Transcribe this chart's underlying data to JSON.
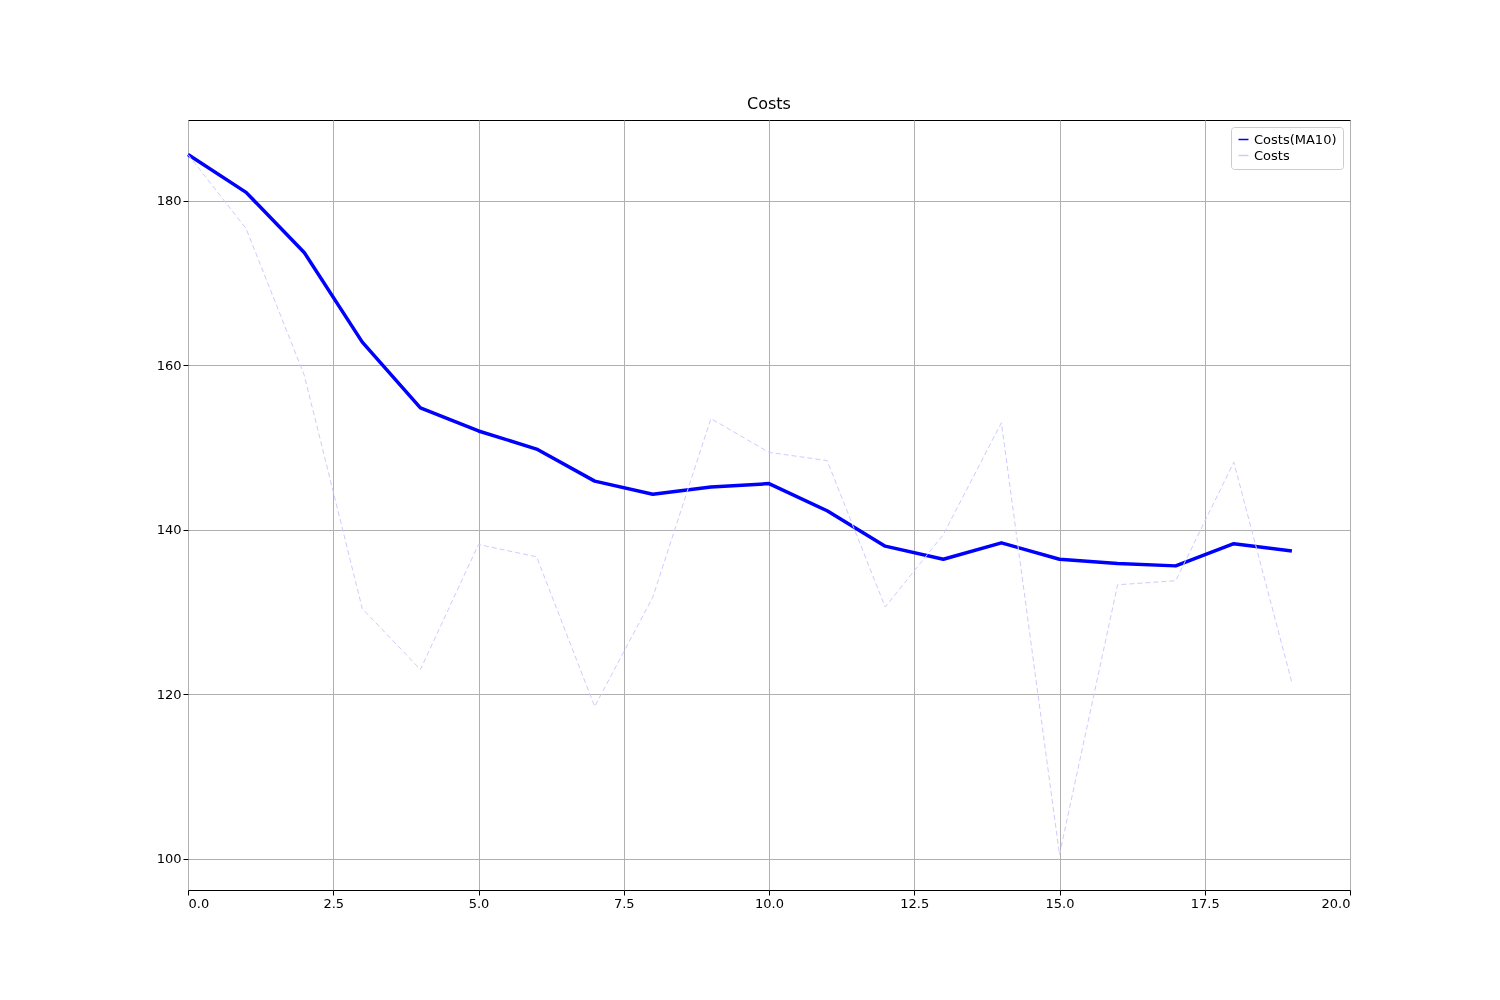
{
  "chart_data": {
    "type": "line",
    "title": "Costs",
    "x": [
      0,
      1,
      2,
      3,
      4,
      5,
      6,
      7,
      8,
      9,
      10,
      11,
      12,
      13,
      14,
      15,
      16,
      17,
      18,
      19
    ],
    "series": [
      {
        "name": "Costs(MA10)",
        "color": "#0000ff",
        "line_style": "solid",
        "values": [
          185.6,
          181.0,
          173.7,
          162.8,
          154.8,
          152.0,
          149.8,
          145.9,
          144.3,
          145.2,
          145.6,
          142.3,
          138.0,
          136.4,
          138.4,
          136.4,
          135.9,
          135.6,
          138.3,
          137.4
        ]
      },
      {
        "name": "Costs",
        "color": "#ccccff",
        "line_style": "dashed",
        "values": [
          185.6,
          176.6,
          158.8,
          130.4,
          123.0,
          138.2,
          136.7,
          118.5,
          131.8,
          153.5,
          149.4,
          148.4,
          130.6,
          139.4,
          153.0,
          100.5,
          133.3,
          133.8,
          148.2,
          121.4
        ]
      }
    ],
    "xlim": [
      0,
      20
    ],
    "xticks": [
      {
        "value": 0,
        "label": "0.0"
      },
      {
        "value": 2.5,
        "label": "2.5"
      },
      {
        "value": 5,
        "label": "5.0"
      },
      {
        "value": 7.5,
        "label": "7.5"
      },
      {
        "value": 10,
        "label": "10.0"
      },
      {
        "value": 12.5,
        "label": "12.5"
      },
      {
        "value": 15,
        "label": "15.0"
      },
      {
        "value": 17.5,
        "label": "17.5"
      },
      {
        "value": 20,
        "label": "20.0"
      }
    ],
    "ylim": [
      96.2,
      189.8
    ],
    "yticks": [
      100,
      120,
      140,
      160,
      180
    ],
    "grid": true,
    "legend": "top right",
    "marker": "none"
  }
}
